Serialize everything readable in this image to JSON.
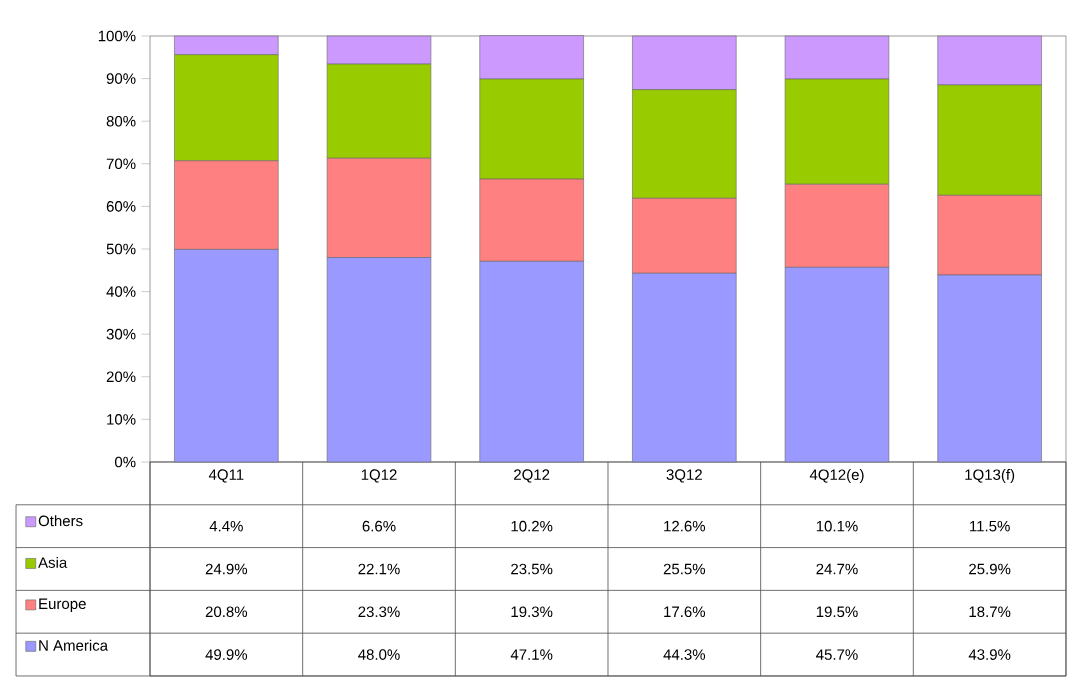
{
  "chart_data": {
    "type": "bar",
    "stacked": true,
    "legend": "bottom",
    "categories": [
      "4Q11",
      "1Q12",
      "2Q12",
      "3Q12",
      "4Q12(e)",
      "1Q13(f)"
    ],
    "ylim": [
      0,
      100
    ],
    "yticks": [
      {
        "value": 0,
        "label": "0%"
      },
      {
        "value": 10,
        "label": "10%"
      },
      {
        "value": 20,
        "label": "20%"
      },
      {
        "value": 30,
        "label": "30%"
      },
      {
        "value": 40,
        "label": "40%"
      },
      {
        "value": 50,
        "label": "50%"
      },
      {
        "value": 60,
        "label": "60%"
      },
      {
        "value": 70,
        "label": "70%"
      },
      {
        "value": 80,
        "label": "80%"
      },
      {
        "value": 90,
        "label": "90%"
      },
      {
        "value": 100,
        "label": "100%"
      }
    ],
    "series": [
      {
        "name": "N America",
        "color": "#9999ff",
        "values": [
          49.9,
          48.0,
          47.1,
          44.3,
          45.7,
          43.9
        ],
        "value_labels": [
          "49.9%",
          "48.0%",
          "47.1%",
          "44.3%",
          "45.7%",
          "43.9%"
        ]
      },
      {
        "name": "Europe",
        "color": "#ff8080",
        "values": [
          20.8,
          23.3,
          19.3,
          17.6,
          19.5,
          18.7
        ],
        "value_labels": [
          "20.8%",
          "23.3%",
          "19.3%",
          "17.6%",
          "19.5%",
          "18.7%"
        ]
      },
      {
        "name": "Asia",
        "color": "#99cc00",
        "values": [
          24.9,
          22.1,
          23.5,
          25.5,
          24.7,
          25.9
        ],
        "value_labels": [
          "24.9%",
          "22.1%",
          "23.5%",
          "25.5%",
          "24.7%",
          "25.9%"
        ]
      },
      {
        "name": "Others",
        "color": "#cc99ff",
        "values": [
          4.4,
          6.6,
          10.2,
          12.6,
          10.1,
          11.5
        ],
        "value_labels": [
          "4.4%",
          "6.6%",
          "10.2%",
          "12.6%",
          "10.1%",
          "11.5%"
        ]
      }
    ]
  }
}
